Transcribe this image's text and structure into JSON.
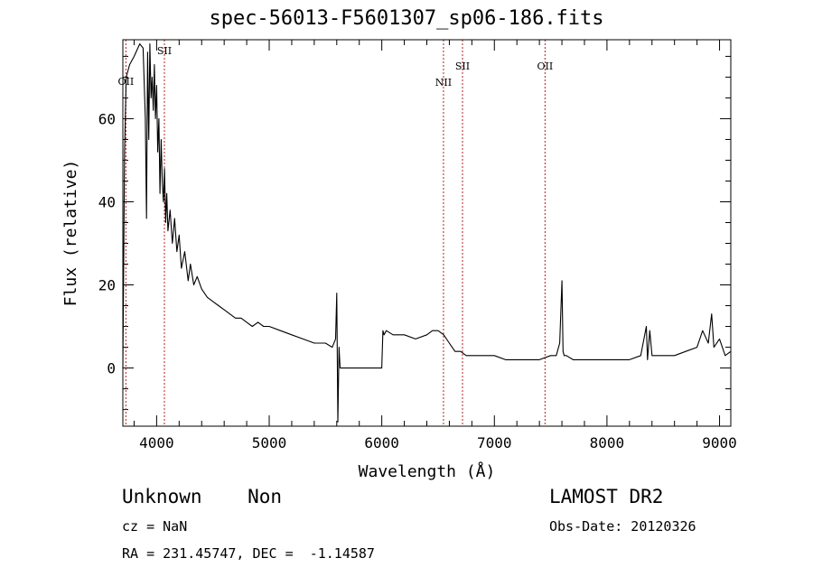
{
  "chart_data": {
    "type": "line",
    "title": "spec-56013-F5601307_sp06-186.fits",
    "xlabel": "Wavelength (Å)",
    "ylabel": "Flux (relative)",
    "xlim": [
      3700,
      9100
    ],
    "ylim": [
      -14,
      79
    ],
    "xticks": [
      4000,
      5000,
      6000,
      7000,
      8000,
      9000
    ],
    "yticks": [
      0,
      20,
      40,
      60
    ],
    "series": [
      {
        "x": [
          3700,
          3715,
          3730,
          3760,
          3800,
          3850,
          3880,
          3900,
          3910,
          3920,
          3930,
          3940,
          3950,
          3960,
          3970,
          3980,
          3990,
          4000,
          4010,
          4020,
          4030,
          4040,
          4050,
          4060,
          4070,
          4080,
          4090,
          4100,
          4120,
          4140,
          4160,
          4180,
          4200,
          4220,
          4250,
          4280,
          4300,
          4330,
          4360,
          4400,
          4450,
          4500,
          4550,
          4600,
          4650,
          4700,
          4750,
          4800,
          4850,
          4900,
          4950,
          5000,
          5100,
          5200,
          5300,
          5400,
          5500,
          5560,
          5590,
          5600,
          5610,
          5620,
          5630,
          5640,
          5650,
          6000,
          6010,
          6020,
          6040,
          6100,
          6200,
          6300,
          6400,
          6450,
          6500,
          6550,
          6600,
          6650,
          6700,
          6750,
          6800,
          6900,
          7000,
          7100,
          7200,
          7300,
          7400,
          7500,
          7550,
          7580,
          7600,
          7610,
          7620,
          7640,
          7700,
          7800,
          7900,
          8000,
          8100,
          8200,
          8300,
          8350,
          8360,
          8380,
          8400,
          8500,
          8600,
          8700,
          8800,
          8850,
          8900,
          8930,
          8950,
          9000,
          9050,
          9100
        ],
        "y": [
          0,
          52,
          70,
          73,
          75,
          78,
          77,
          60,
          36,
          76,
          55,
          78,
          65,
          70,
          62,
          73,
          60,
          68,
          52,
          60,
          42,
          55,
          45,
          40,
          48,
          35,
          42,
          33,
          38,
          30,
          36,
          28,
          32,
          24,
          28,
          21,
          25,
          20,
          22,
          19,
          17,
          16,
          15,
          14,
          13,
          12,
          12,
          11,
          10,
          11,
          10,
          10,
          9,
          8,
          7,
          6,
          6,
          5,
          7,
          18,
          -13,
          5,
          0,
          0,
          0,
          0,
          9,
          8,
          9,
          8,
          8,
          7,
          8,
          9,
          9,
          8,
          6,
          4,
          4,
          3,
          3,
          3,
          3,
          2,
          2,
          2,
          2,
          3,
          3,
          6,
          21,
          4,
          3,
          3,
          2,
          2,
          2,
          2,
          2,
          2,
          3,
          10,
          2,
          9,
          3,
          3,
          3,
          4,
          5,
          9,
          6,
          13,
          5,
          7,
          3,
          4
        ]
      }
    ],
    "lines": [
      {
        "label": "OII",
        "x": 3727
      },
      {
        "label": "SII",
        "x": 4069
      },
      {
        "label": "NII",
        "x": 6548
      },
      {
        "label": "SII",
        "x": 6717
      },
      {
        "label": "OII",
        "x": 7450
      }
    ]
  },
  "footer": {
    "class_text": "Unknown    Non",
    "cz_text": "cz = NaN",
    "coords_text": "RA = 231.45747, DEC =  -1.14587",
    "survey_text": "LAMOST DR2",
    "obs_date_text": "Obs-Date: 20120326"
  }
}
